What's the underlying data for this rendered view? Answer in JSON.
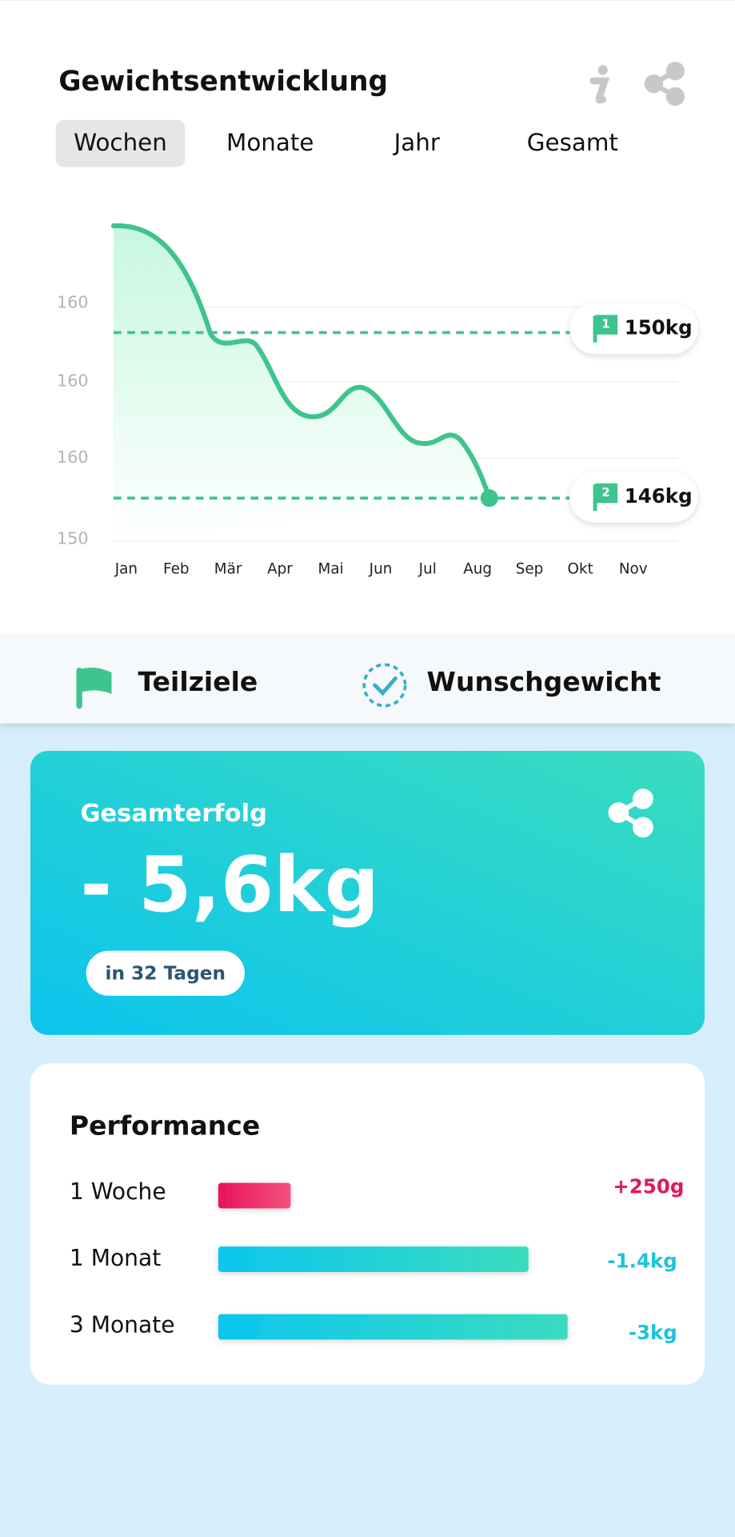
{
  "header": {
    "title": "Gewichtsentwicklung"
  },
  "tabs": [
    "Wochen",
    "Monate",
    "Jahr",
    "Gesamt"
  ],
  "chart": {
    "y_labels": [
      "160",
      "160",
      "160",
      "150"
    ],
    "months": [
      "Jan",
      "Feb",
      "Mär",
      "Apr",
      "Mai",
      "Jun",
      "Jul",
      "Aug",
      "Sep",
      "Okt",
      "Nov"
    ],
    "goals": [
      {
        "number": "1",
        "label": "150kg"
      },
      {
        "number": "2",
        "label": "146kg"
      }
    ]
  },
  "legend": [
    "Teilziele",
    "Wunschgewicht"
  ],
  "summary": {
    "title": "Gesamterfolg",
    "value": "- 5,6kg",
    "period": "in 32 Tagen"
  },
  "performance": {
    "title": "Performance",
    "rows": [
      {
        "label": "1 Woche",
        "change": "+250g"
      },
      {
        "label": "1 Monat",
        "change": "-1.4kg"
      },
      {
        "label": "3 Monate",
        "change": "-3kg"
      }
    ]
  }
}
